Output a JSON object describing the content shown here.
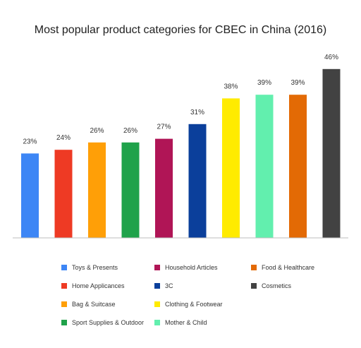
{
  "chart_data": {
    "type": "bar",
    "title": "Most popular product categories for CBEC in China (2016)",
    "xlabel": "",
    "ylabel": "",
    "ylim": [
      0,
      50
    ],
    "grid": false,
    "legend_position": "bottom",
    "categories": [
      "Toys & Presents",
      "Home Applicances",
      "Bag & Suitcase",
      "Sport Supplies & Outdoor",
      "Household Articles",
      "3C",
      "Clothing & Footwear",
      "Mother & Child",
      "Food & Healthcare",
      "Cosmetics"
    ],
    "values": [
      23,
      24,
      26,
      26,
      27,
      31,
      38,
      39,
      39,
      46
    ],
    "value_labels": [
      "23%",
      "24%",
      "26%",
      "26%",
      "27%",
      "31%",
      "38%",
      "39%",
      "39%",
      "46%"
    ],
    "colors": [
      "#3d86f5",
      "#ee3a24",
      "#ff9f07",
      "#1fa24a",
      "#b01556",
      "#0b3f9b",
      "#ffeb00",
      "#62efae",
      "#e36a05",
      "#424242"
    ],
    "legend": [
      {
        "label": "Toys & Presents",
        "color": "#3d86f5"
      },
      {
        "label": "Home Applicances",
        "color": "#ee3a24"
      },
      {
        "label": "Bag & Suitcase",
        "color": "#ff9f07"
      },
      {
        "label": "Sport Supplies & Outdoor",
        "color": "#1fa24a"
      },
      {
        "label": "Household Articles",
        "color": "#b01556"
      },
      {
        "label": "3C",
        "color": "#0b3f9b"
      },
      {
        "label": "Clothing & Footwear",
        "color": "#ffeb00"
      },
      {
        "label": "Mother & Child",
        "color": "#62efae"
      },
      {
        "label": "Food & Healthcare",
        "color": "#e36a05"
      },
      {
        "label": "Cosmetics",
        "color": "#424242"
      }
    ]
  }
}
